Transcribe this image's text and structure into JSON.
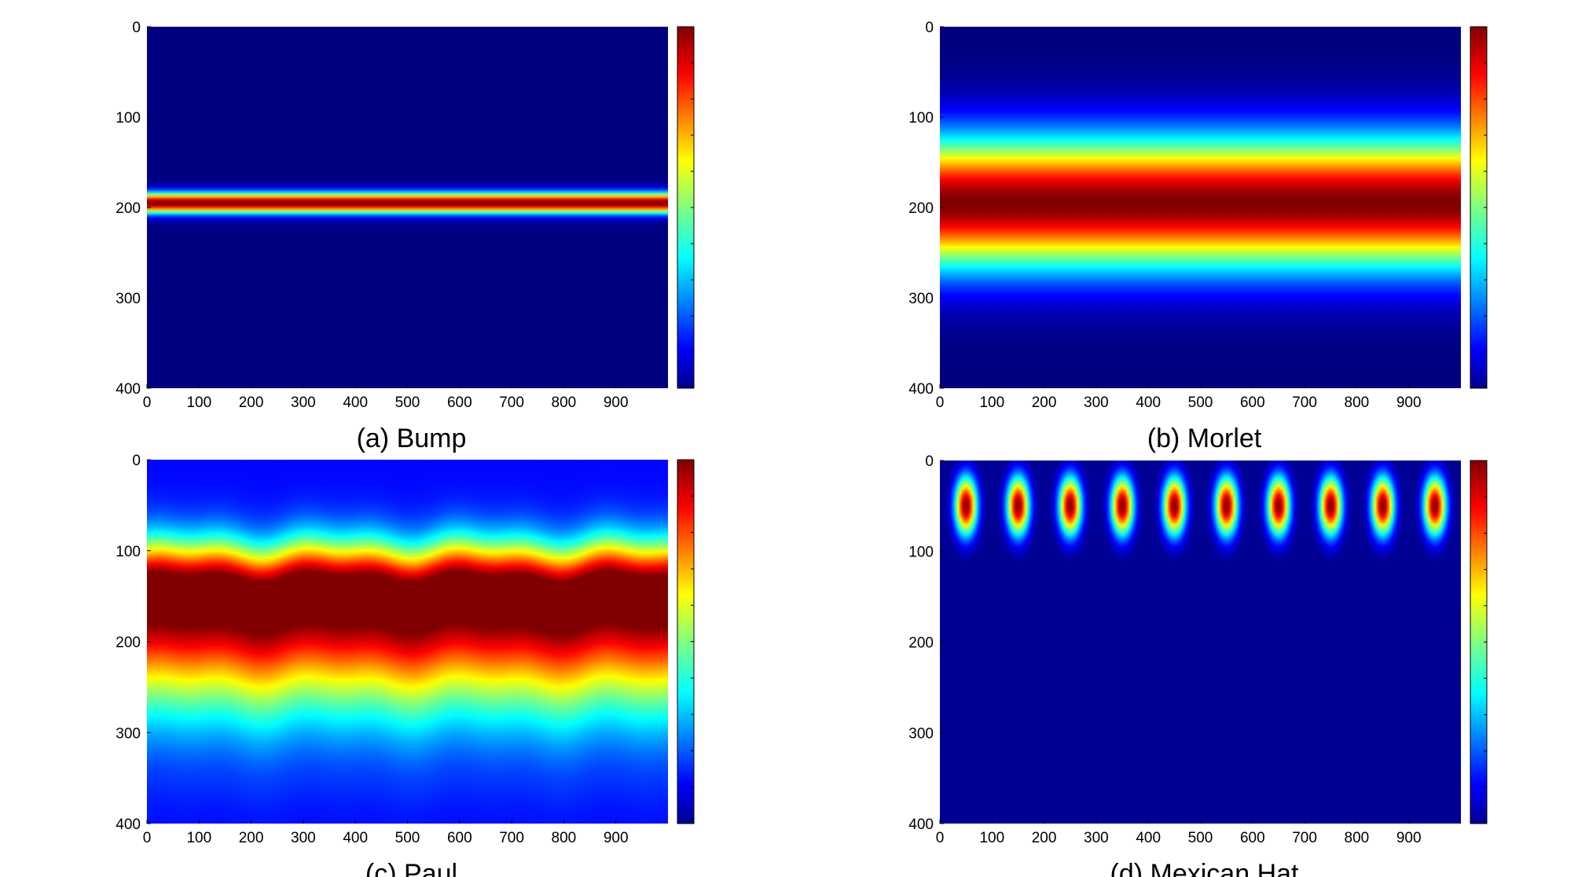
{
  "figure": {
    "panels": [
      {
        "caption": "(a) Bump"
      },
      {
        "caption": "(b) Morlet"
      },
      {
        "caption": "(c) Paul"
      },
      {
        "caption": "(d) Mexican Hat"
      }
    ]
  },
  "chart_data": [
    {
      "type": "heatmap",
      "caption": "(a) Bump",
      "colormap": "jet",
      "x_ticks": [
        0,
        100,
        200,
        300,
        400,
        500,
        600,
        700,
        800,
        900
      ],
      "y_ticks": [
        0,
        100,
        200,
        300,
        400
      ],
      "xlim": [
        0,
        1000
      ],
      "ylim": [
        0,
        400
      ],
      "y_reversed": true,
      "colorbar": true,
      "colorbar_ticks_labeled": false,
      "pattern": {
        "kind": "band",
        "center_y": 195,
        "half_width_y": 12
      }
    },
    {
      "type": "heatmap",
      "caption": "(b) Morlet",
      "colormap": "jet",
      "x_ticks": [
        0,
        100,
        200,
        300,
        400,
        500,
        600,
        700,
        800,
        900
      ],
      "y_ticks": [
        0,
        100,
        200,
        300,
        400
      ],
      "xlim": [
        0,
        1000
      ],
      "ylim": [
        0,
        400
      ],
      "y_reversed": true,
      "colorbar": true,
      "colorbar_ticks_labeled": false,
      "pattern": {
        "kind": "band",
        "center_y": 195,
        "half_width_y": 75
      }
    },
    {
      "type": "heatmap",
      "caption": "(c) Paul",
      "colormap": "jet",
      "x_ticks": [
        0,
        100,
        200,
        300,
        400,
        500,
        600,
        700,
        800,
        900
      ],
      "y_ticks": [
        0,
        100,
        200,
        300,
        400
      ],
      "xlim": [
        0,
        1000
      ],
      "ylim": [
        0,
        400
      ],
      "y_reversed": true,
      "colorbar": true,
      "colorbar_ticks_labeled": false,
      "pattern": {
        "kind": "gradient",
        "peak_y": 145
      }
    },
    {
      "type": "heatmap",
      "caption": "(d) Mexican Hat",
      "colormap": "jet",
      "x_ticks": [
        0,
        100,
        200,
        300,
        400,
        500,
        600,
        700,
        800,
        900
      ],
      "y_ticks": [
        0,
        100,
        200,
        300,
        400
      ],
      "xlim": [
        0,
        1000
      ],
      "ylim": [
        0,
        400
      ],
      "y_reversed": true,
      "colorbar": true,
      "colorbar_ticks_labeled": false,
      "pattern": {
        "kind": "spots",
        "center_y": 50,
        "centers_x": [
          50,
          150,
          250,
          350,
          450,
          550,
          650,
          750,
          850,
          950
        ]
      }
    }
  ]
}
